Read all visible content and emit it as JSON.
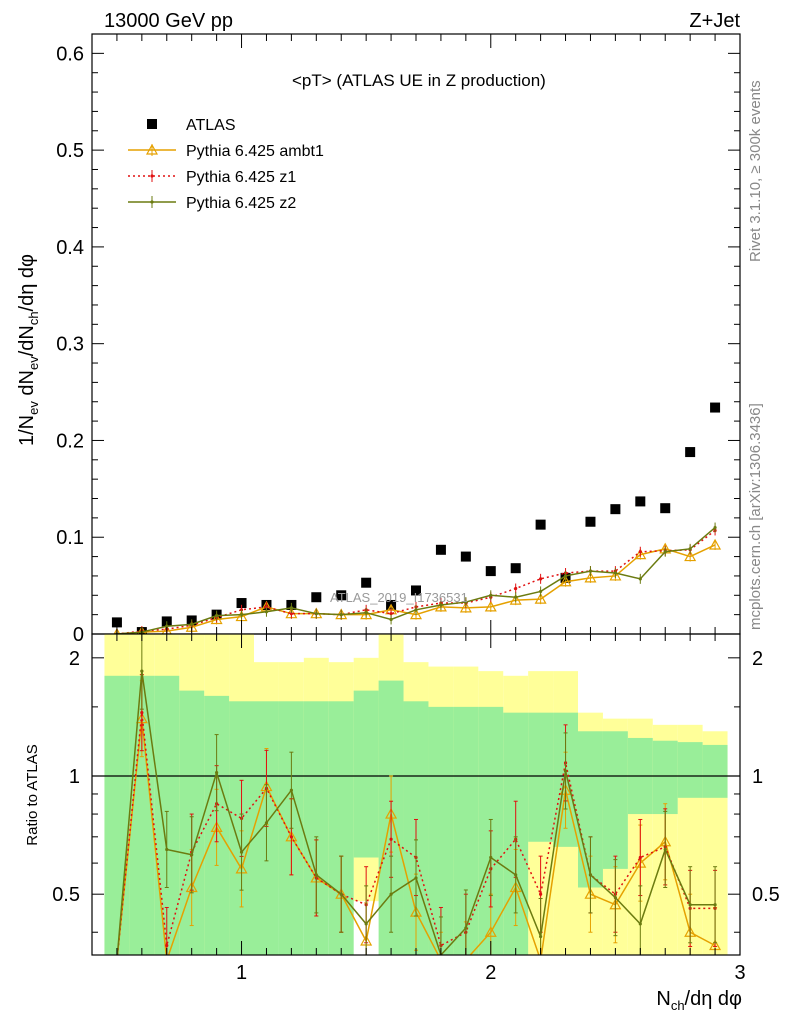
{
  "header": {
    "left": "13000 GeV pp",
    "right": "Z+Jet"
  },
  "side_text": {
    "rivet": "Rivet 3.1.10, ≥ 300k events",
    "mcplots": "mcplots.cern.ch [arXiv:1306.3436]"
  },
  "watermark": "ATLAS_2019_I1736531",
  "chart_data": [
    {
      "type": "scatter",
      "title": "<pT> (ATLAS UE in Z production)",
      "xlabel": "N_ch/dη dφ",
      "ylabel": "1/N_ev dN_ev/dN_ch/dη dφ",
      "xlim": [
        0.4,
        3.0
      ],
      "ylim": [
        0,
        0.62
      ],
      "yticks": [
        0,
        0.1,
        0.2,
        0.3,
        0.4,
        0.5,
        0.6
      ],
      "ytick_labels": [
        "0",
        "0.1",
        "0.2",
        "0.3",
        "0.4",
        "0.5",
        "0.6"
      ],
      "legend_position": "top-left",
      "x": [
        0.5,
        0.6,
        0.7,
        0.8,
        0.9,
        1.0,
        1.1,
        1.2,
        1.3,
        1.4,
        1.5,
        1.6,
        1.7,
        1.8,
        1.9,
        2.0,
        2.1,
        2.2,
        2.3,
        2.4,
        2.5,
        2.6,
        2.7,
        2.8,
        2.9
      ],
      "series": [
        {
          "name": "ATLAS",
          "color": "#000000",
          "style": "square",
          "values": [
            0.012,
            0.002,
            0.013,
            0.014,
            0.02,
            0.032,
            0.03,
            0.03,
            0.038,
            0.04,
            0.053,
            0.03,
            0.045,
            0.087,
            0.08,
            0.065,
            0.068,
            0.113,
            0.058,
            0.116,
            0.129,
            0.137,
            0.13,
            0.188,
            0.234
          ]
        },
        {
          "name": "Pythia 6.425 ambt1",
          "color": "#e5a100",
          "style": "triangle",
          "values": [
            0.0,
            0.002,
            0.003,
            0.007,
            0.015,
            0.018,
            0.028,
            0.021,
            0.021,
            0.02,
            0.02,
            0.025,
            0.02,
            0.028,
            0.027,
            0.028,
            0.035,
            0.036,
            0.054,
            0.058,
            0.06,
            0.082,
            0.088,
            0.08,
            0.092
          ]
        },
        {
          "name": "Pythia 6.425 z1",
          "color": "#e01010",
          "style": "dotted",
          "values": [
            0.0,
            0.003,
            0.005,
            0.009,
            0.017,
            0.025,
            0.028,
            0.021,
            0.021,
            0.02,
            0.025,
            0.021,
            0.028,
            0.032,
            0.032,
            0.038,
            0.047,
            0.057,
            0.063,
            0.065,
            0.065,
            0.085,
            0.086,
            0.087,
            0.107
          ]
        },
        {
          "name": "Pythia 6.425 z2",
          "color": "#6b7b10",
          "style": "line",
          "values": [
            0.0,
            0.002,
            0.008,
            0.01,
            0.019,
            0.02,
            0.023,
            0.027,
            0.021,
            0.02,
            0.022,
            0.015,
            0.025,
            0.03,
            0.033,
            0.04,
            0.038,
            0.044,
            0.06,
            0.065,
            0.063,
            0.057,
            0.085,
            0.088,
            0.11
          ]
        }
      ]
    },
    {
      "type": "line",
      "ylabel": "Ratio to ATLAS",
      "xlabel": "N_ch/dη dφ",
      "xlim": [
        0.4,
        3.0
      ],
      "ylim": [
        0.35,
        2.3
      ],
      "scale": "log",
      "yticks": [
        0.5,
        1,
        2
      ],
      "ytick_labels": [
        "0.5",
        "1",
        "2"
      ],
      "xticks": [
        1,
        2,
        3
      ],
      "xtick_labels": [
        "1",
        "2",
        "3"
      ],
      "x": [
        0.5,
        0.6,
        0.7,
        0.8,
        0.9,
        1.0,
        1.1,
        1.2,
        1.3,
        1.4,
        1.5,
        1.6,
        1.7,
        1.8,
        1.9,
        2.0,
        2.1,
        2.2,
        2.3,
        2.4,
        2.5,
        2.6,
        2.7,
        2.8,
        2.9
      ],
      "bands": {
        "yellow": {
          "color": "#ffff99",
          "low": [
            0.35,
            0.35,
            0.35,
            0.35,
            0.35,
            0.35,
            0.52,
            0.52,
            0.5,
            0.49,
            0.48,
            0.6,
            0.35,
            0.35,
            0.35,
            0.35,
            0.35,
            0.35,
            0.35,
            0.35,
            0.35,
            0.35,
            0.35,
            0.35,
            0.35
          ],
          "high": [
            2.3,
            2.3,
            2.3,
            2.3,
            2.3,
            2.3,
            1.95,
            1.95,
            2.0,
            1.95,
            2.0,
            2.3,
            1.95,
            1.9,
            1.9,
            1.85,
            1.8,
            1.85,
            1.85,
            1.45,
            1.4,
            1.4,
            1.35,
            1.35,
            1.3
          ]
        },
        "green": {
          "color": "#99ee99",
          "low": [
            0.35,
            0.35,
            0.35,
            0.35,
            0.35,
            0.35,
            0.35,
            0.35,
            0.35,
            0.35,
            0.62,
            0.35,
            0.35,
            0.35,
            0.35,
            0.35,
            0.35,
            0.68,
            0.66,
            0.52,
            0.58,
            0.8,
            0.8,
            0.88,
            0.88
          ],
          "high": [
            1.8,
            1.8,
            1.8,
            1.65,
            1.6,
            1.55,
            1.55,
            1.55,
            1.55,
            1.55,
            1.65,
            1.75,
            1.55,
            1.5,
            1.5,
            1.5,
            1.45,
            1.45,
            1.45,
            1.3,
            1.3,
            1.25,
            1.23,
            1.22,
            1.2
          ]
        }
      },
      "reference_line": 1,
      "series": [
        {
          "name": "Pythia 6.425 ambt1",
          "color": "#e5a100",
          "style": "triangle",
          "values": [
            0.2,
            1.4,
            0.2,
            0.52,
            0.74,
            0.58,
            0.94,
            0.7,
            0.55,
            0.5,
            0.38,
            0.8,
            0.45,
            0.32,
            0.34,
            0.4,
            0.52,
            0.32,
            0.92,
            0.5,
            0.47,
            0.6,
            0.68,
            0.4,
            0.37
          ]
        },
        {
          "name": "Pythia 6.425 z1",
          "color": "#e01010",
          "style": "dotted",
          "values": [
            0.2,
            1.45,
            0.37,
            0.64,
            0.85,
            0.78,
            0.93,
            0.7,
            0.55,
            0.5,
            0.47,
            0.69,
            0.62,
            0.37,
            0.4,
            0.58,
            0.69,
            0.5,
            1.08,
            0.56,
            0.5,
            0.62,
            0.66,
            0.46,
            0.46
          ]
        },
        {
          "name": "Pythia 6.425 z2",
          "color": "#6b7b10",
          "style": "line",
          "values": [
            0.2,
            1.85,
            0.65,
            0.63,
            1.02,
            0.64,
            0.76,
            0.92,
            0.56,
            0.5,
            0.42,
            0.5,
            0.55,
            0.35,
            0.41,
            0.62,
            0.56,
            0.39,
            1.03,
            0.56,
            0.49,
            0.42,
            0.65,
            0.47,
            0.47
          ]
        }
      ]
    }
  ]
}
